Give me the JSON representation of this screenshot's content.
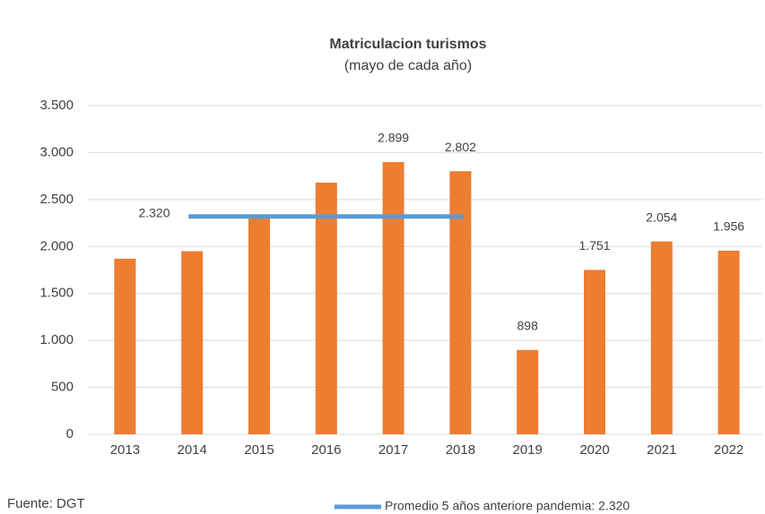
{
  "chart_data": {
    "type": "bar",
    "title": "Matriculacion turismos",
    "subtitle": "(mayo de cada año)",
    "categories": [
      "2013",
      "2014",
      "2015",
      "2016",
      "2017",
      "2018",
      "2019",
      "2020",
      "2021",
      "2022"
    ],
    "values": [
      1870,
      1950,
      2320,
      2680,
      2899,
      2802,
      898,
      1751,
      2054,
      1956
    ],
    "value_labels": [
      null,
      null,
      null,
      null,
      "2.899",
      "2.802",
      "898",
      "1.751",
      "2.054",
      "1.956"
    ],
    "color": "#ed7d31",
    "ylim": [
      0,
      3500
    ],
    "yticks": [
      0,
      500,
      {
        "value": 1000,
        "label": "1.000"
      },
      {
        "value": 1500,
        "label": "1.500"
      },
      {
        "value": 2000,
        "label": "2.000"
      },
      {
        "value": 2500,
        "label": "2.500"
      },
      {
        "value": 3000,
        "label": "3.000"
      },
      {
        "value": 3500,
        "label": "3.500"
      }
    ],
    "grid": true,
    "average": {
      "name": "Promedio 5 años anteriore pandemia: 2.320",
      "value": 2320,
      "label": "2.320",
      "color": "#5b9bd5",
      "categories_span": [
        "2014",
        "2018"
      ]
    },
    "source": "Fuente: DGT"
  }
}
